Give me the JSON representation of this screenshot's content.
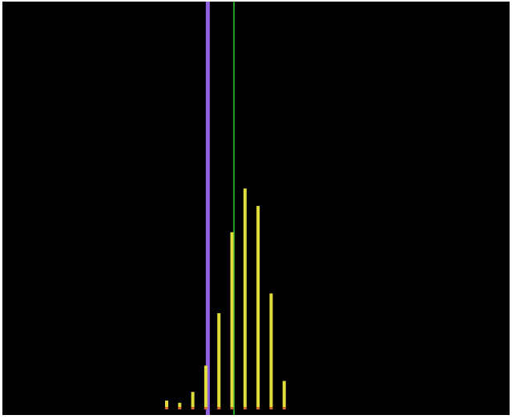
{
  "chart_data": {
    "type": "bar",
    "title": "",
    "xlabel": "",
    "ylabel": "",
    "grid": false,
    "legend": "none",
    "x": [
      1,
      2,
      3,
      4,
      5,
      6,
      7,
      8,
      9,
      10
    ],
    "ylim": [
      0,
      100
    ],
    "series": [
      {
        "color": "#e0dc3c",
        "values": [
          3,
          2,
          7,
          19,
          43,
          80,
          100,
          92,
          52,
          12
        ]
      },
      {
        "color": "#e06a2a",
        "values": [
          1,
          1,
          1,
          1,
          1,
          1,
          1,
          1,
          1,
          1
        ]
      }
    ],
    "reference_lines": [
      {
        "x": 4.15,
        "color": "#9060e0"
      },
      {
        "x": 6.15,
        "color": "#20a020"
      }
    ],
    "background": "#000000"
  }
}
